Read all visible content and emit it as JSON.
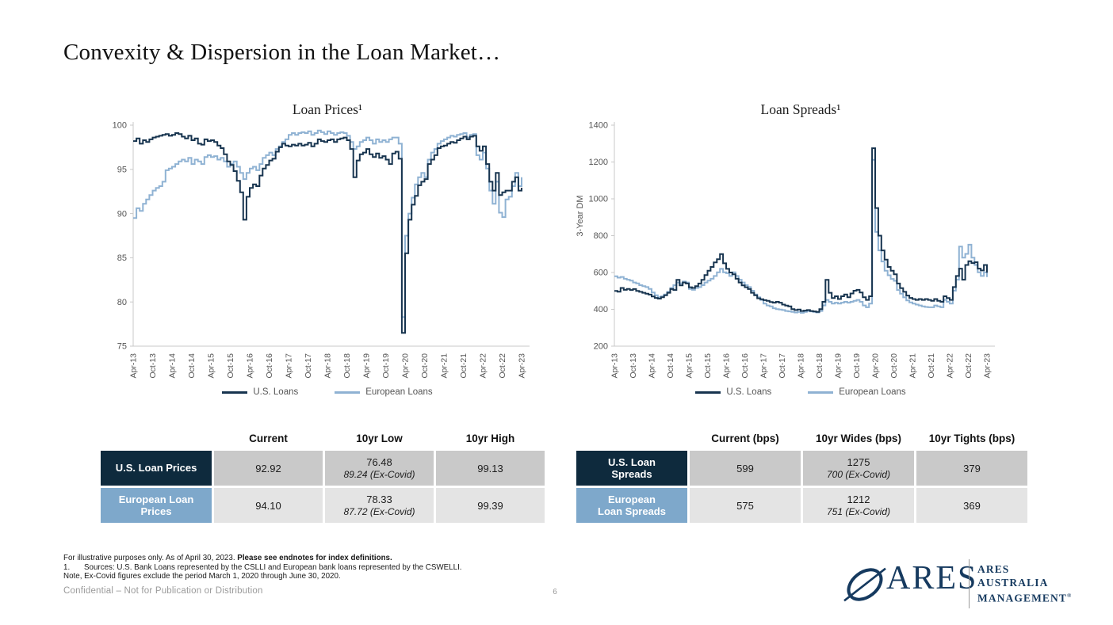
{
  "slide": {
    "title": "Convexity & Dispersion in the Loan Market…"
  },
  "colors": {
    "us_line": "#17344f",
    "eu_line": "#8fb2d3",
    "table_navy": "#0e2a3d",
    "table_blue": "#7ea8cb",
    "cell_gray_dark": "#c9c9c9",
    "cell_gray_light": "#e4e4e4",
    "axis_text": "#555555",
    "axis_line": "#c9c9c9",
    "logo_navy": "#163a5f"
  },
  "chart_data": [
    {
      "type": "line",
      "title": "Loan Prices¹",
      "xlabel": "",
      "ylabel": "",
      "ylim": [
        75,
        100
      ],
      "yticks": [
        75,
        80,
        85,
        90,
        95,
        100
      ],
      "grid": false,
      "legend_position": "bottom",
      "x_tick_labels": [
        "Apr-13",
        "Oct-13",
        "Apr-14",
        "Oct-14",
        "Apr-15",
        "Oct-15",
        "Apr-16",
        "Oct-16",
        "Apr-17",
        "Oct-17",
        "Apr-18",
        "Oct-18",
        "Apr-19",
        "Oct-19",
        "Apr-20",
        "Oct-20",
        "Apr-21",
        "Oct-21",
        "Apr-22",
        "Oct-22",
        "Apr-23"
      ],
      "months_per_tick": 6,
      "series": [
        {
          "name": "U.S. Loans",
          "color": "#17344f",
          "values": [
            98.2,
            98.5,
            97.9,
            98.3,
            98.1,
            98.4,
            98.6,
            98.7,
            98.8,
            98.9,
            99.0,
            98.8,
            98.9,
            99.1,
            99.0,
            98.7,
            98.5,
            98.8,
            98.3,
            98.5,
            97.9,
            97.8,
            98.4,
            98.2,
            98.3,
            98.1,
            97.7,
            97.4,
            96.7,
            95.9,
            95.5,
            94.8,
            93.7,
            92.4,
            89.3,
            91.9,
            92.9,
            93.3,
            93.1,
            94.3,
            95.1,
            95.5,
            96.0,
            96.2,
            97.0,
            97.5,
            97.9,
            97.7,
            97.6,
            97.8,
            97.7,
            97.9,
            97.7,
            97.8,
            98.0,
            97.6,
            97.9,
            98.4,
            98.2,
            98.1,
            98.3,
            98.4,
            98.1,
            98.4,
            98.5,
            98.6,
            98.3,
            97.3,
            94.1,
            96.0,
            96.7,
            96.9,
            97.3,
            96.7,
            96.4,
            96.8,
            96.3,
            96.5,
            96.1,
            95.6,
            96.8,
            97.0,
            96.2,
            76.5,
            85.5,
            89.3,
            91.0,
            92.0,
            93.2,
            93.6,
            93.9,
            95.6,
            96.1,
            96.6,
            97.4,
            97.6,
            97.7,
            97.9,
            98.1,
            98.0,
            98.3,
            98.5,
            98.7,
            98.4,
            98.7,
            98.8,
            97.6,
            97.1,
            97.6,
            95.6,
            93.6,
            92.6,
            94.6,
            92.1,
            92.4,
            92.6,
            92.6,
            93.6,
            94.1,
            92.6,
            92.92
          ]
        },
        {
          "name": "European Loans",
          "color": "#8fb2d3",
          "values": [
            89.5,
            90.6,
            90.3,
            91.1,
            91.6,
            92.1,
            92.6,
            92.9,
            93.1,
            93.6,
            94.9,
            95.1,
            95.3,
            95.6,
            95.9,
            96.1,
            95.9,
            96.3,
            95.6,
            96.1,
            95.9,
            95.6,
            96.4,
            96.6,
            96.4,
            96.5,
            96.1,
            96.3,
            95.9,
            95.3,
            95.6,
            95.9,
            95.3,
            94.6,
            93.9,
            94.6,
            95.1,
            95.3,
            94.9,
            95.6,
            96.3,
            96.6,
            96.9,
            96.6,
            97.3,
            97.6,
            98.1,
            98.4,
            98.9,
            99.1,
            98.9,
            99.1,
            99.2,
            99.1,
            99.3,
            98.9,
            99.1,
            99.4,
            99.2,
            99.0,
            99.3,
            99.1,
            98.9,
            99.1,
            99.2,
            99.1,
            98.8,
            98.1,
            97.3,
            97.6,
            98.1,
            98.3,
            98.6,
            98.3,
            97.9,
            98.4,
            98.1,
            98.3,
            98.1,
            98.4,
            98.6,
            98.6,
            97.9,
            78.3,
            87.5,
            90.0,
            91.8,
            93.3,
            94.1,
            94.6,
            94.1,
            96.1,
            96.9,
            97.3,
            97.9,
            98.2,
            98.4,
            98.6,
            98.8,
            98.7,
            98.9,
            99.0,
            99.1,
            98.6,
            98.9,
            99.0,
            96.6,
            96.1,
            96.9,
            95.1,
            92.6,
            91.1,
            93.6,
            90.1,
            89.6,
            91.6,
            91.9,
            93.1,
            94.6,
            93.1,
            94.1
          ]
        }
      ]
    },
    {
      "type": "line",
      "title": "Loan Spreads¹",
      "xlabel": "",
      "ylabel": "3-Year  DM",
      "ylim": [
        200,
        1400
      ],
      "yticks": [
        200,
        400,
        600,
        800,
        1000,
        1200,
        1400
      ],
      "grid": false,
      "legend_position": "bottom",
      "x_tick_labels": [
        "Apr-13",
        "Oct-13",
        "Apr-14",
        "Oct-14",
        "Apr-15",
        "Oct-15",
        "Apr-16",
        "Oct-16",
        "Apr-17",
        "Oct-17",
        "Apr-18",
        "Oct-18",
        "Apr-19",
        "Oct-19",
        "Apr-20",
        "Oct-20",
        "Apr-21",
        "Oct-21",
        "Apr-22",
        "Oct-22",
        "Apr-23"
      ],
      "months_per_tick": 6,
      "series": [
        {
          "name": "U.S. Loans",
          "color": "#17344f",
          "values": [
            500,
            496,
            516,
            506,
            511,
            505,
            510,
            500,
            495,
            490,
            485,
            480,
            470,
            462,
            458,
            466,
            476,
            490,
            510,
            505,
            560,
            530,
            546,
            540,
            520,
            516,
            526,
            540,
            560,
            586,
            610,
            630,
            655,
            672,
            700,
            650,
            620,
            600,
            590,
            566,
            546,
            530,
            520,
            510,
            490,
            476,
            460,
            455,
            450,
            446,
            440,
            436,
            441,
            436,
            426,
            420,
            416,
            401,
            396,
            399,
            391,
            393,
            396,
            391,
            389,
            386,
            401,
            441,
            560,
            490,
            461,
            471,
            456,
            471,
            481,
            466,
            486,
            501,
            506,
            491,
            466,
            451,
            471,
            1275,
            950,
            800,
            720,
            670,
            630,
            610,
            590,
            540,
            515,
            495,
            475,
            462,
            456,
            451,
            456,
            451,
            456,
            451,
            446,
            456,
            446,
            441,
            471,
            461,
            451,
            521,
            581,
            621,
            561,
            641,
            661,
            651,
            656,
            621,
            611,
            641,
            599
          ]
        },
        {
          "name": "European Loans",
          "color": "#8fb2d3",
          "values": [
            580,
            572,
            576,
            566,
            561,
            556,
            546,
            541,
            531,
            526,
            521,
            511,
            491,
            476,
            466,
            471,
            481,
            496,
            516,
            531,
            546,
            541,
            551,
            546,
            511,
            506,
            516,
            521,
            531,
            546,
            556,
            566,
            581,
            601,
            620,
            601,
            596,
            581,
            601,
            581,
            561,
            546,
            531,
            521,
            501,
            481,
            466,
            451,
            431,
            421,
            416,
            406,
            401,
            399,
            396,
            391,
            389,
            386,
            383,
            386,
            381,
            386,
            391,
            389,
            386,
            383,
            391,
            421,
            451,
            441,
            431,
            436,
            431,
            436,
            441,
            436,
            441,
            446,
            451,
            441,
            421,
            411,
            431,
            1212,
            820,
            720,
            660,
            610,
            585,
            565,
            555,
            505,
            485,
            465,
            448,
            438,
            431,
            426,
            421,
            416,
            413,
            411,
            411,
            421,
            416,
            411,
            451,
            441,
            431,
            501,
            561,
            741,
            681,
            701,
            751,
            681,
            641,
            601,
            581,
            601,
            575
          ]
        }
      ]
    }
  ],
  "tables": [
    {
      "columns": [
        "Current",
        "10yr Low",
        "10yr High"
      ],
      "rows": [
        {
          "label": "U.S. Loan Prices",
          "cells": [
            {
              "main": "92.92"
            },
            {
              "main": "76.48",
              "sub": "89.24 (Ex-Covid)"
            },
            {
              "main": "99.13"
            }
          ]
        },
        {
          "label": "European Loan Prices",
          "cells": [
            {
              "main": "94.10"
            },
            {
              "main": "78.33",
              "sub": "87.72 (Ex-Covid)"
            },
            {
              "main": "99.39"
            }
          ]
        }
      ]
    },
    {
      "columns": [
        "Current (bps)",
        "10yr Wides (bps)",
        "10yr Tights (bps)"
      ],
      "rows": [
        {
          "label": "U.S. Loan Spreads",
          "cells": [
            {
              "main": "599"
            },
            {
              "main": "1275",
              "sub": "700 (Ex-Covid)"
            },
            {
              "main": "379"
            }
          ]
        },
        {
          "label": "European Loan Spreads",
          "cells": [
            {
              "main": "575"
            },
            {
              "main": "1212",
              "sub": "751 (Ex-Covid)"
            },
            {
              "main": "369"
            }
          ]
        }
      ]
    }
  ],
  "footnotes": {
    "line1_normal": "For illustrative purposes only. As of April 30, 2023. ",
    "line1_bold": "Please see endnotes for index definitions.",
    "line2_num": "1.",
    "line2_text": "Sources: U.S. Bank Loans represented by the CSLLI and European bank loans represented by the CSWELLI.",
    "line3": "Note, Ex-Covid figures exclude the period March 1, 2020 through June 30, 2020."
  },
  "footer": {
    "confidential": "Confidential – Not for Publication or Distribution",
    "page_number": "6"
  },
  "logo": {
    "wordmark": "ARES",
    "line1": "ARES",
    "line2": "AUSTRALIA",
    "line3": "MANAGEMENT",
    "registered": "®"
  }
}
